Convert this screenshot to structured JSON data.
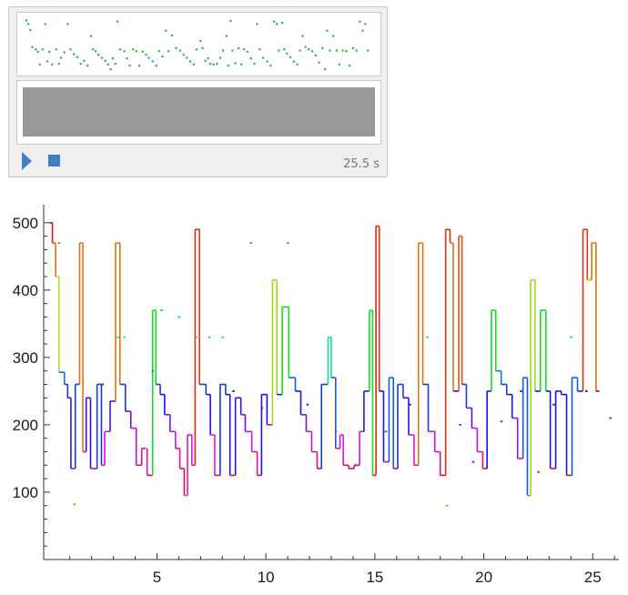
{
  "sound_panel": {
    "duration_label": "25.5 s",
    "note_color": "#2fb34e",
    "waveform_color": "#999999",
    "button_color": "#3d7fc6",
    "play_icon": "play-triangle-icon",
    "stop_icon": "stop-square-icon"
  },
  "chart_data": {
    "type": "line",
    "title": "",
    "xlabel": "",
    "ylabel": "",
    "xlim": [
      -0.2,
      26.2
    ],
    "ylim": [
      0,
      520
    ],
    "x_ticks": [
      "5",
      "10",
      "15",
      "20",
      "25"
    ],
    "y_ticks": [
      "100",
      "200",
      "300",
      "400",
      "500"
    ],
    "x_tick_values": [
      5,
      10,
      15,
      20,
      25
    ],
    "y_tick_values": [
      100,
      200,
      300,
      400,
      500
    ],
    "grid": false,
    "legend": "none",
    "color_scheme": "hue by frequency: red high, violet/blue mid, green ~250, orange/yellow low",
    "segments": [
      [
        0.05,
        0.2,
        500
      ],
      [
        0.2,
        0.35,
        470
      ],
      [
        0.35,
        0.5,
        420
      ],
      [
        0.5,
        0.75,
        278
      ],
      [
        0.75,
        0.9,
        260
      ],
      [
        0.9,
        1.05,
        240
      ],
      [
        1.05,
        1.25,
        135
      ],
      [
        1.25,
        1.45,
        260
      ],
      [
        1.45,
        1.6,
        470
      ],
      [
        1.6,
        1.75,
        160
      ],
      [
        1.75,
        1.95,
        240
      ],
      [
        1.95,
        2.25,
        135
      ],
      [
        2.25,
        2.45,
        260
      ],
      [
        2.45,
        2.6,
        140
      ],
      [
        2.6,
        2.85,
        190
      ],
      [
        2.85,
        3.1,
        235
      ],
      [
        3.1,
        3.3,
        470
      ],
      [
        3.3,
        3.55,
        260
      ],
      [
        3.55,
        3.8,
        220
      ],
      [
        3.8,
        4.05,
        195
      ],
      [
        4.05,
        4.3,
        140
      ],
      [
        4.3,
        4.5,
        165
      ],
      [
        4.55,
        4.8,
        125
      ],
      [
        4.8,
        4.95,
        370
      ],
      [
        4.95,
        5.15,
        260
      ],
      [
        5.15,
        5.35,
        245
      ],
      [
        5.35,
        5.6,
        215
      ],
      [
        5.6,
        5.85,
        190
      ],
      [
        5.85,
        6.05,
        165
      ],
      [
        6.05,
        6.25,
        135
      ],
      [
        6.25,
        6.4,
        95
      ],
      [
        6.4,
        6.6,
        185
      ],
      [
        6.6,
        6.75,
        140
      ],
      [
        6.75,
        6.95,
        490
      ],
      [
        6.95,
        7.25,
        260
      ],
      [
        7.25,
        7.45,
        245
      ],
      [
        7.45,
        7.65,
        185
      ],
      [
        7.65,
        7.9,
        125
      ],
      [
        7.9,
        8.15,
        260
      ],
      [
        8.15,
        8.35,
        245
      ],
      [
        8.35,
        8.6,
        125
      ],
      [
        8.6,
        8.85,
        240
      ],
      [
        8.85,
        9.05,
        215
      ],
      [
        9.05,
        9.35,
        190
      ],
      [
        9.35,
        9.6,
        160
      ],
      [
        9.6,
        9.8,
        125
      ],
      [
        9.8,
        10.05,
        245
      ],
      [
        10.05,
        10.3,
        200
      ],
      [
        10.3,
        10.5,
        415
      ],
      [
        10.5,
        10.75,
        245
      ],
      [
        10.75,
        11.05,
        375
      ],
      [
        11.05,
        11.35,
        270
      ],
      [
        11.35,
        11.6,
        250
      ],
      [
        11.6,
        11.85,
        215
      ],
      [
        11.85,
        12.1,
        190
      ],
      [
        12.1,
        12.35,
        160
      ],
      [
        12.35,
        12.55,
        135
      ],
      [
        12.55,
        12.85,
        260
      ],
      [
        12.85,
        13.0,
        330
      ],
      [
        13.0,
        13.2,
        270
      ],
      [
        13.2,
        13.4,
        165
      ],
      [
        13.4,
        13.55,
        185
      ],
      [
        13.55,
        13.8,
        140
      ],
      [
        13.8,
        14.05,
        135
      ],
      [
        14.05,
        14.3,
        140
      ],
      [
        14.3,
        14.5,
        190
      ],
      [
        14.5,
        14.75,
        250
      ],
      [
        14.75,
        14.9,
        370
      ],
      [
        14.9,
        15.05,
        125
      ],
      [
        15.05,
        15.2,
        495
      ],
      [
        15.2,
        15.4,
        250
      ],
      [
        15.4,
        15.65,
        145
      ],
      [
        15.65,
        15.85,
        270
      ],
      [
        15.85,
        16.05,
        135
      ],
      [
        16.05,
        16.3,
        260
      ],
      [
        16.3,
        16.55,
        240
      ],
      [
        16.55,
        16.8,
        185
      ],
      [
        16.8,
        17.0,
        140
      ],
      [
        17.0,
        17.2,
        470
      ],
      [
        17.2,
        17.45,
        260
      ],
      [
        17.45,
        17.75,
        190
      ],
      [
        17.75,
        18.0,
        160
      ],
      [
        18.0,
        18.25,
        125
      ],
      [
        18.25,
        18.45,
        490
      ],
      [
        18.45,
        18.6,
        470
      ],
      [
        18.6,
        18.85,
        250
      ],
      [
        18.85,
        19.0,
        480
      ],
      [
        19.0,
        19.2,
        260
      ],
      [
        19.2,
        19.45,
        225
      ],
      [
        19.45,
        19.7,
        195
      ],
      [
        19.7,
        19.95,
        160
      ],
      [
        19.95,
        20.15,
        135
      ],
      [
        20.15,
        20.35,
        250
      ],
      [
        20.35,
        20.55,
        370
      ],
      [
        20.55,
        20.8,
        280
      ],
      [
        20.8,
        21.05,
        260
      ],
      [
        21.05,
        21.3,
        245
      ],
      [
        21.3,
        21.55,
        210
      ],
      [
        21.55,
        21.8,
        150
      ],
      [
        21.8,
        22.0,
        270
      ],
      [
        22.0,
        22.15,
        95
      ],
      [
        22.15,
        22.35,
        415
      ],
      [
        22.35,
        22.6,
        250
      ],
      [
        22.6,
        22.85,
        370
      ],
      [
        22.85,
        23.05,
        250
      ],
      [
        23.05,
        23.3,
        135
      ],
      [
        23.3,
        23.55,
        250
      ],
      [
        23.55,
        23.8,
        245
      ],
      [
        23.8,
        24.05,
        125
      ],
      [
        24.05,
        24.3,
        270
      ],
      [
        24.3,
        24.55,
        250
      ],
      [
        24.55,
        24.75,
        490
      ],
      [
        24.75,
        24.95,
        415
      ],
      [
        24.95,
        25.15,
        470
      ],
      [
        25.15,
        25.3,
        250
      ]
    ],
    "dots": [
      [
        0.5,
        470
      ],
      [
        1.2,
        82
      ],
      [
        2.5,
        260
      ],
      [
        3.2,
        330
      ],
      [
        3.5,
        330
      ],
      [
        4.8,
        280
      ],
      [
        5.2,
        370
      ],
      [
        6.0,
        360
      ],
      [
        6.8,
        330
      ],
      [
        7.4,
        330
      ],
      [
        8.0,
        330
      ],
      [
        8.5,
        250
      ],
      [
        9.3,
        470
      ],
      [
        9.8,
        225
      ],
      [
        11.0,
        470
      ],
      [
        11.9,
        230
      ],
      [
        13.2,
        190
      ],
      [
        14.1,
        140
      ],
      [
        15.5,
        190
      ],
      [
        16.6,
        230
      ],
      [
        17.4,
        330
      ],
      [
        18.3,
        80
      ],
      [
        18.9,
        200
      ],
      [
        19.5,
        145
      ],
      [
        20.8,
        205
      ],
      [
        21.7,
        250
      ],
      [
        22.5,
        130
      ],
      [
        23.2,
        230
      ],
      [
        24.0,
        330
      ],
      [
        24.7,
        250
      ],
      [
        25.8,
        210
      ]
    ]
  }
}
